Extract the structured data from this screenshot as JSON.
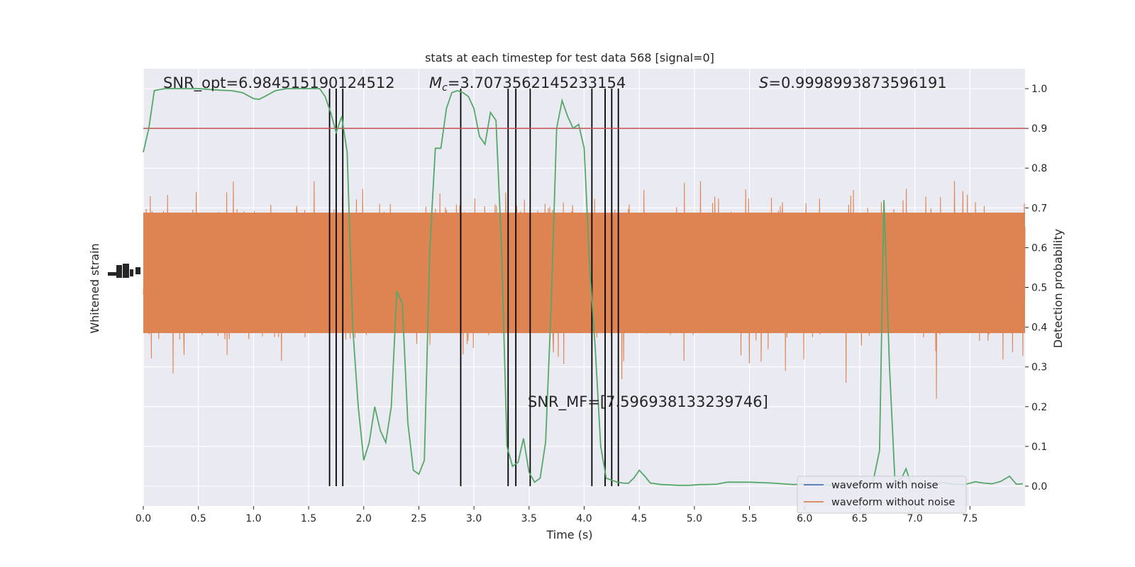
{
  "chart_data": {
    "type": "line",
    "title": "stats at each timestep for test data 568 [signal=0]",
    "xlabel": "Time (s)",
    "ylabel_left": "Whitened strain",
    "ylabel_right": "Detection probability",
    "xlim": [
      0,
      8
    ],
    "ylim_right": [
      -0.05,
      1.05
    ],
    "x_ticks": [
      "0.0",
      "0.5",
      "1.0",
      "1.5",
      "2.0",
      "2.5",
      "3.0",
      "3.5",
      "4.0",
      "4.5",
      "5.0",
      "5.5",
      "6.0",
      "6.5",
      "7.0",
      "7.5"
    ],
    "y_ticks_right": [
      "0.0",
      "0.1",
      "0.2",
      "0.3",
      "0.4",
      "0.5",
      "0.6",
      "0.7",
      "0.8",
      "0.9",
      "1.0"
    ],
    "grid": true,
    "legend_placement": "lower-right",
    "legend": [
      "waveform with noise",
      "waveform without noise"
    ],
    "annotations": {
      "snr_opt": "SNR_opt=6.984515190124512",
      "mc_symbol": "M",
      "mc_sub": "c",
      "mc_value": "=3.7073562145233154",
      "s_symbol": "S",
      "s_value": "=0.9998993873596191",
      "snr_mf": "SNR_MF=[7.596938133239746]"
    },
    "threshold": 0.9,
    "vertical_lines_x": [
      1.69,
      1.75,
      1.81,
      2.88,
      3.31,
      3.38,
      3.51,
      4.07,
      4.19,
      4.25,
      4.31
    ],
    "series": [
      {
        "name": "waveform with noise",
        "color": "#4c72b0"
      },
      {
        "name": "waveform without noise",
        "color": "#dd8452"
      }
    ],
    "probability_curve": {
      "color": "#55a868",
      "x": [
        0.0,
        0.05,
        0.1,
        0.15,
        0.2,
        0.3,
        0.4,
        0.5,
        0.6,
        0.7,
        0.8,
        0.9,
        1.0,
        1.05,
        1.1,
        1.2,
        1.3,
        1.4,
        1.5,
        1.6,
        1.65,
        1.7,
        1.75,
        1.8,
        1.85,
        1.9,
        1.95,
        2.0,
        2.05,
        2.1,
        2.15,
        2.2,
        2.25,
        2.3,
        2.35,
        2.4,
        2.45,
        2.5,
        2.55,
        2.6,
        2.65,
        2.7,
        2.75,
        2.8,
        2.85,
        2.9,
        2.95,
        3.0,
        3.05,
        3.1,
        3.15,
        3.2,
        3.25,
        3.3,
        3.35,
        3.4,
        3.45,
        3.5,
        3.55,
        3.6,
        3.65,
        3.7,
        3.75,
        3.8,
        3.85,
        3.9,
        3.95,
        4.0,
        4.05,
        4.1,
        4.15,
        4.2,
        4.25,
        4.3,
        4.35,
        4.4,
        4.45,
        4.5,
        4.55,
        4.6,
        4.7,
        4.8,
        4.85,
        4.9,
        4.95,
        5.0,
        5.05,
        5.1,
        5.2,
        5.3,
        5.5,
        5.7,
        5.8,
        5.85,
        5.9,
        6.0,
        6.1,
        6.3,
        6.45,
        6.55,
        6.62,
        6.68,
        6.72,
        6.77,
        6.82,
        6.88,
        6.92,
        6.96,
        7.0,
        7.05,
        7.15,
        7.25,
        7.35,
        7.45,
        7.55,
        7.62,
        7.7,
        7.78,
        7.86,
        7.92,
        7.98
      ],
      "y": [
        0.84,
        0.9,
        0.995,
        0.998,
        1.0,
        1.0,
        1.0,
        1.0,
        0.998,
        0.996,
        0.995,
        0.99,
        0.975,
        0.973,
        0.98,
        0.995,
        1.0,
        1.0,
        1.0,
        1.0,
        0.98,
        0.94,
        0.89,
        0.93,
        0.84,
        0.4,
        0.2,
        0.065,
        0.11,
        0.2,
        0.14,
        0.11,
        0.2,
        0.49,
        0.46,
        0.16,
        0.04,
        0.03,
        0.065,
        0.6,
        0.85,
        0.85,
        0.95,
        0.99,
        0.995,
        0.99,
        0.98,
        0.95,
        0.88,
        0.86,
        0.94,
        0.92,
        0.6,
        0.1,
        0.05,
        0.06,
        0.12,
        0.035,
        0.01,
        0.02,
        0.11,
        0.45,
        0.9,
        0.97,
        0.93,
        0.9,
        0.91,
        0.85,
        0.55,
        0.35,
        0.1,
        0.02,
        0.015,
        0.01,
        0.008,
        0.007,
        0.02,
        0.04,
        0.025,
        0.008,
        0.004,
        0.003,
        0.002,
        0.002,
        0.002,
        0.003,
        0.004,
        0.004,
        0.005,
        0.01,
        0.01,
        0.008,
        0.006,
        0.005,
        0.004,
        0.005,
        0.004,
        0.002,
        0.003,
        0.005,
        0.01,
        0.09,
        0.72,
        0.3,
        0.01,
        0.02,
        0.044,
        0.01,
        0.005,
        0.004,
        0.004,
        0.009,
        0.005,
        0.004,
        0.011,
        0.008,
        0.006,
        0.012,
        0.025,
        0.005,
        0.006
      ]
    }
  }
}
